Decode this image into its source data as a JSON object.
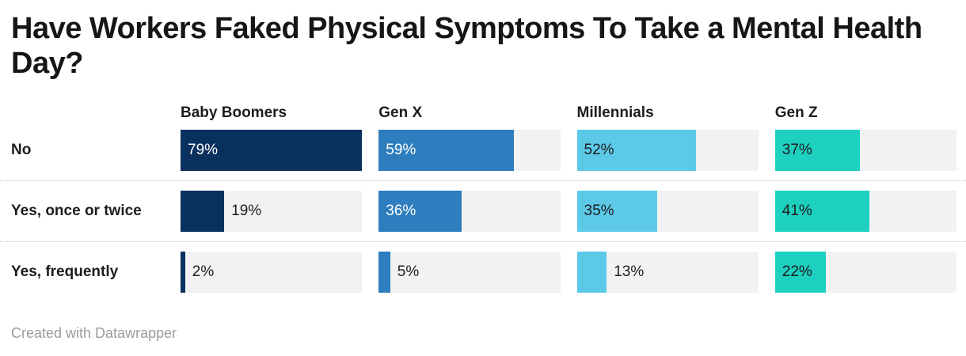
{
  "header": {
    "title": "Have Workers Faked Physical Symptoms To Take a Mental Health Day?"
  },
  "footer": {
    "credit": "Created with Datawrapper"
  },
  "chart_data": {
    "type": "bar",
    "variant": "horizontal-split-bars",
    "title": "Have Workers Faked Physical Symptoms To Take a Mental Health Day?",
    "categories": [
      "No",
      "Yes, once or twice",
      "Yes, frequently"
    ],
    "series": [
      {
        "name": "Baby Boomers",
        "color": "#0a305e",
        "label_color": "#ffffff",
        "values": [
          79,
          19,
          2
        ]
      },
      {
        "name": "Gen X",
        "color": "#2e7dbf",
        "label_color": "#ffffff",
        "values": [
          59,
          36,
          5
        ]
      },
      {
        "name": "Millennials",
        "color": "#5cc9e8",
        "label_color": "#1d1d1d",
        "values": [
          52,
          35,
          13
        ]
      },
      {
        "name": "Gen Z",
        "color": "#1dd0c0",
        "label_color": "#1d1d1d",
        "values": [
          37,
          41,
          22
        ]
      }
    ],
    "value_suffix": "%",
    "scale_max": 79,
    "xlim": [
      0,
      79
    ],
    "grid": "off",
    "legend_position": "column-headers",
    "colors": {
      "track": "#f2f2f2",
      "label_dark": "#1d1d1d",
      "separator": "#c9c9c9"
    }
  }
}
